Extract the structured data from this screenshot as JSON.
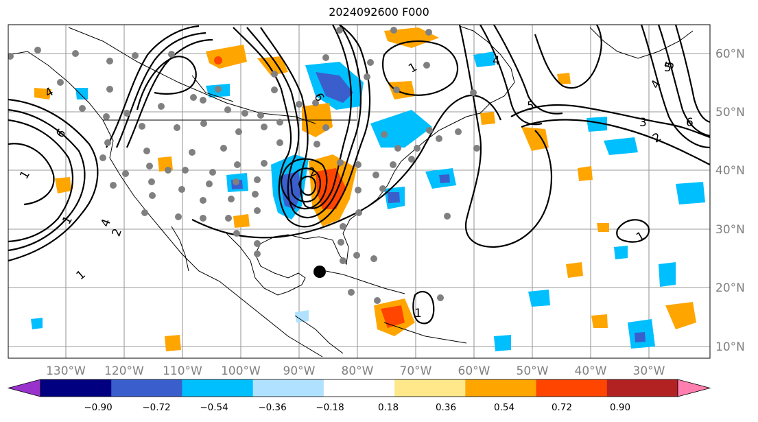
{
  "title": "2024092600 F000",
  "lon_labels": [
    "130°W",
    "120°W",
    "110°W",
    "100°W",
    "90°W",
    "80°W",
    "70°W",
    "60°W",
    "50°W",
    "40°W",
    "30°W"
  ],
  "lat_labels": [
    "60°N",
    "50°N",
    "40°N",
    "30°N",
    "20°N",
    "10°N"
  ],
  "colorbar": {
    "colors": [
      "#9932cc",
      "#000080",
      "#3a5fcd",
      "#00bfff",
      "#b0e2ff",
      "#ffffff",
      "#ffe88a",
      "#ffa500",
      "#ff4500",
      "#b22222",
      "#ff7fae"
    ],
    "tick_labels": [
      "−0.90",
      "−0.72",
      "−0.54",
      "−0.36",
      "−0.18",
      "0.18",
      "0.36",
      "0.54",
      "0.72",
      "0.90"
    ]
  },
  "contour_labels": [
    "6",
    "4",
    "1",
    "2",
    "1",
    "1",
    "4",
    "6",
    "2",
    "1",
    "5",
    "4",
    "1",
    "5",
    "3",
    "2",
    "4",
    "5",
    "6",
    "1"
  ],
  "colors": {
    "gridline": "#9a9a9a",
    "tick_text": "#808080"
  }
}
